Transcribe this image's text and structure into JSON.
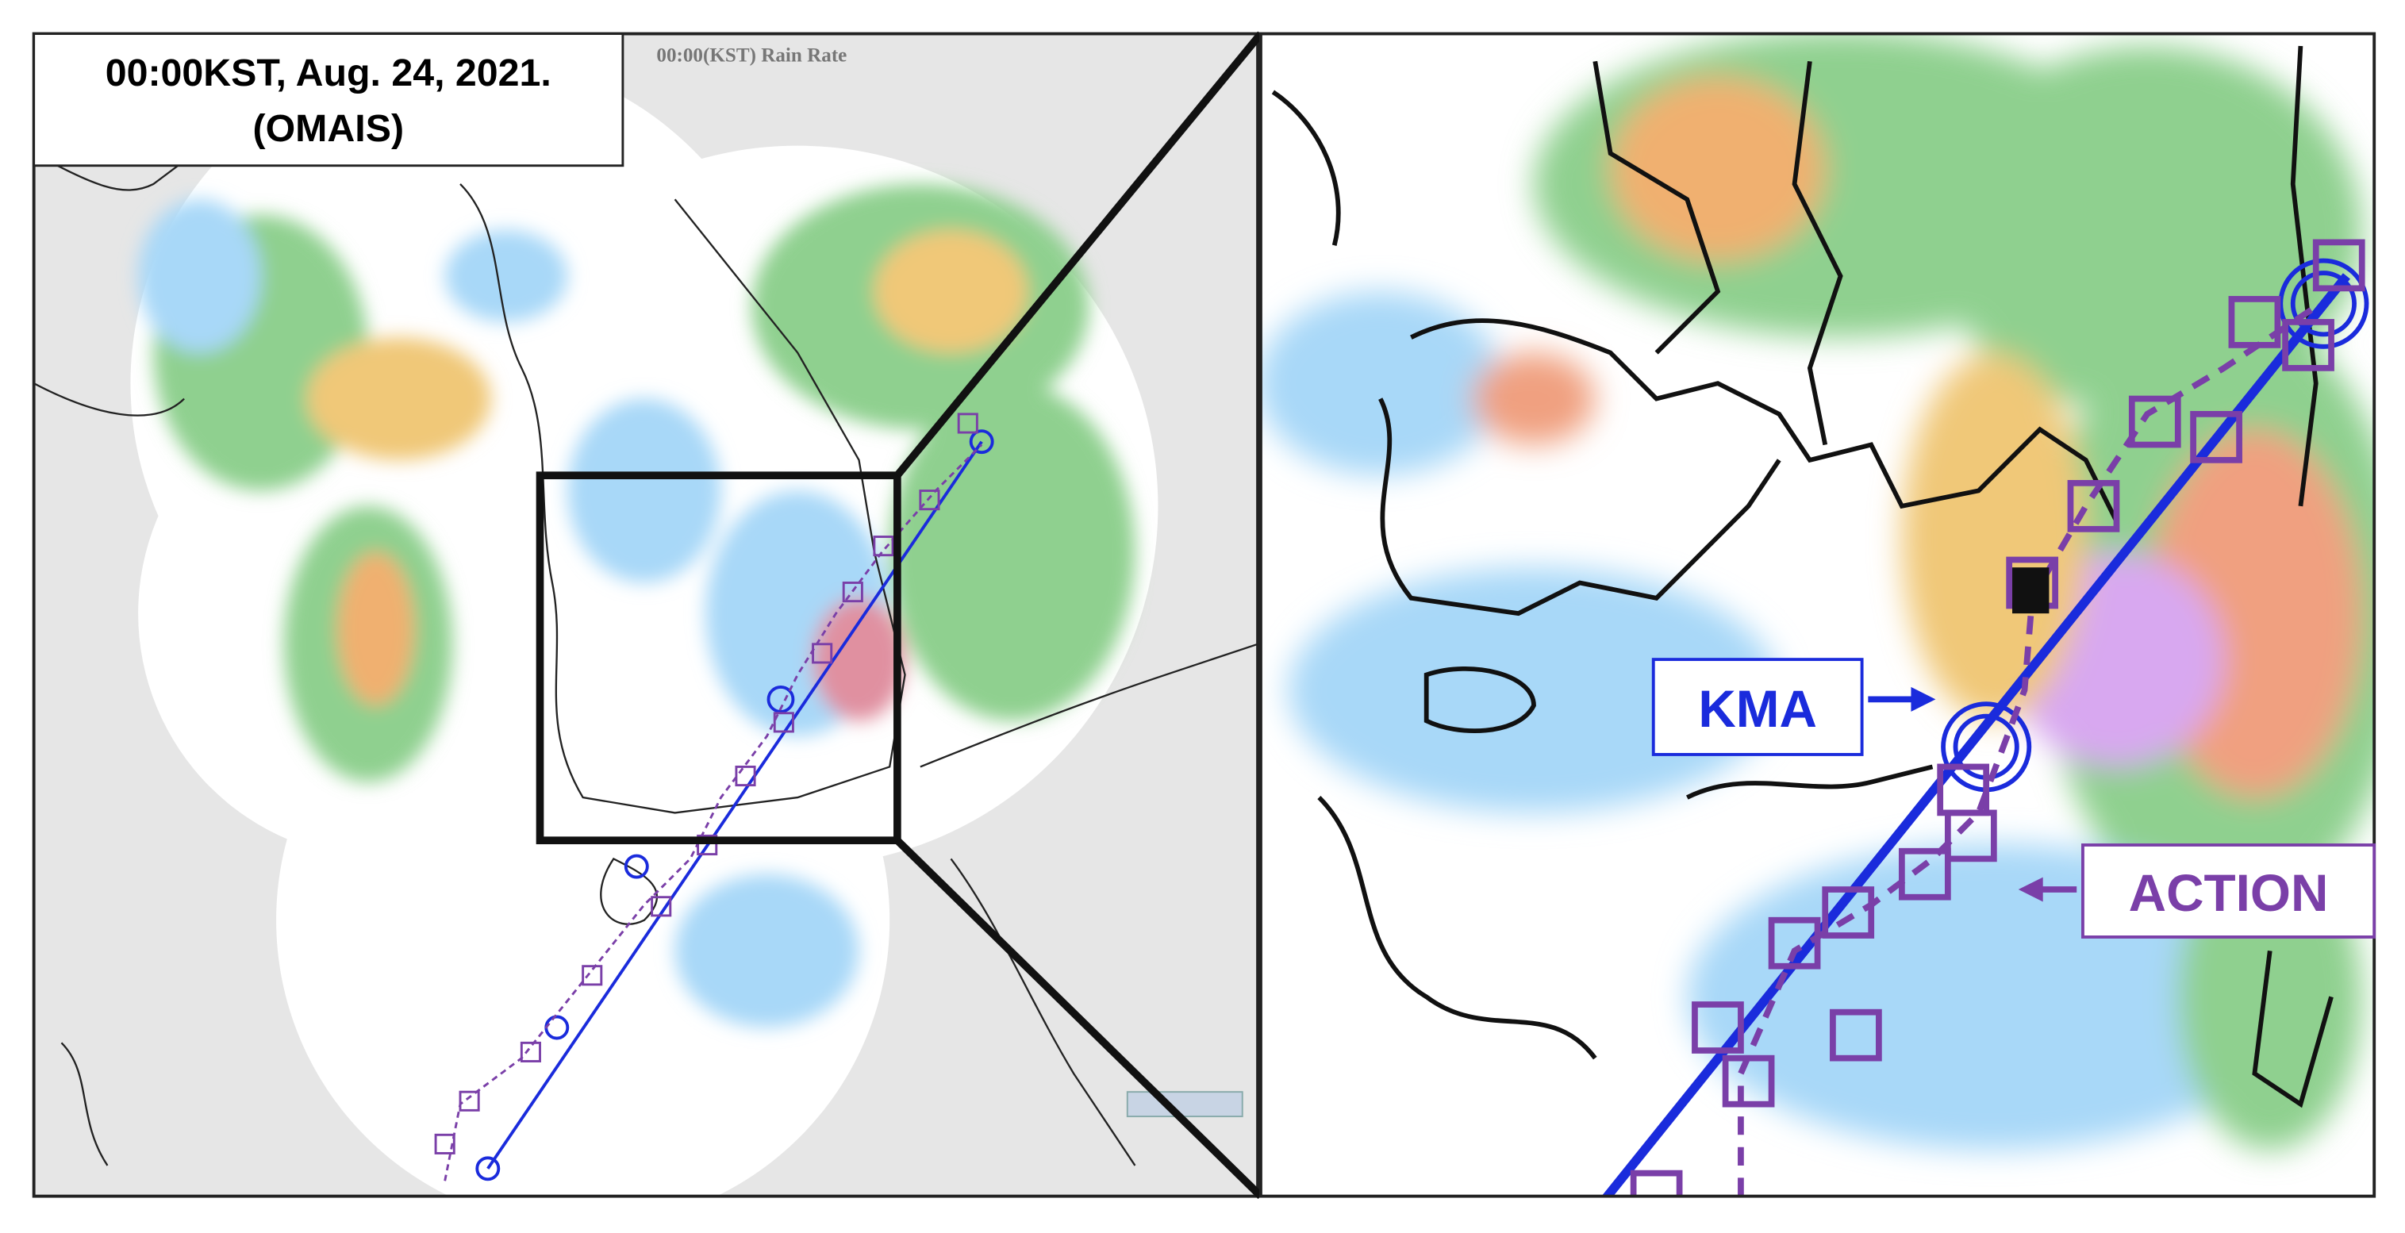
{
  "title": {
    "line1": "00:00KST, Aug. 24, 2021.",
    "line2": "(OMAIS)"
  },
  "map_caption": "00:00(KST) Rain Rate",
  "labels": {
    "kma": "KMA",
    "action": "ACTION"
  }
}
